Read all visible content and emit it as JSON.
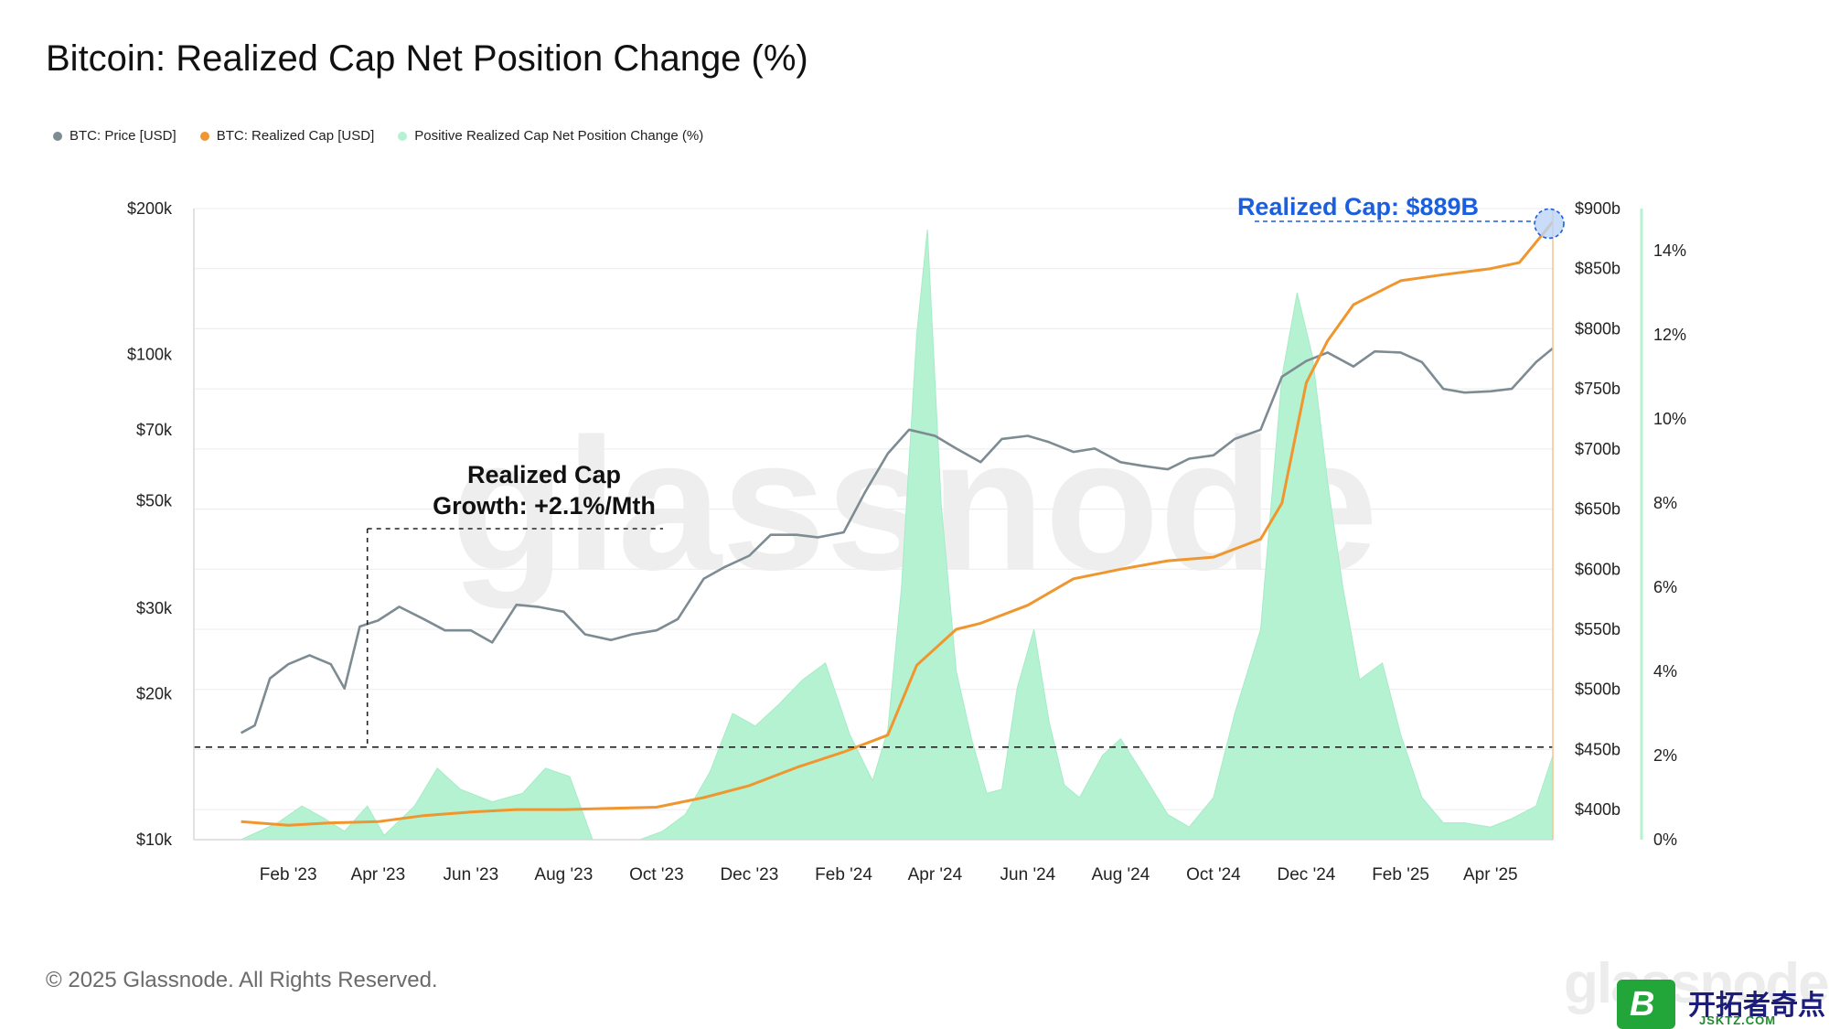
{
  "title": "Bitcoin: Realized Cap Net Position Change (%)",
  "legend": [
    {
      "label": "BTC: Price [USD]",
      "color": "#7d8b92"
    },
    {
      "label": "BTC: Realized Cap [USD]",
      "color": "#f0962e"
    },
    {
      "label": "Positive Realized Cap Net Position Change (%)",
      "color": "#b4f2d2"
    }
  ],
  "footer": "© 2025 Glassnode. All Rights Reserved.",
  "watermark": "glassnode",
  "site_badge": {
    "logo_letter": "B",
    "name": "开拓者奇点",
    "url": "JSKTZ.COM"
  },
  "chart_data": {
    "type": "line",
    "title": "Bitcoin: Realized Cap Net Position Change (%)",
    "x_tick_labels": [
      "Feb '23",
      "Apr '23",
      "Jun '23",
      "Aug '23",
      "Oct '23",
      "Dec '23",
      "Feb '24",
      "Apr '24",
      "Jun '24",
      "Aug '24",
      "Oct '24",
      "Dec '24",
      "Feb '25",
      "Apr '25"
    ],
    "left_axis": {
      "scale": "log",
      "range": [
        10000,
        200000
      ],
      "tick_values": [
        10000,
        20000,
        30000,
        50000,
        70000,
        100000,
        200000
      ],
      "tick_labels": [
        "$10k",
        "$20k",
        "$30k",
        "$50k",
        "$70k",
        "$100k",
        "$200k"
      ]
    },
    "right_axis": {
      "range": [
        375,
        900
      ],
      "tick_values": [
        400,
        450,
        500,
        550,
        600,
        650,
        700,
        750,
        800,
        850,
        900
      ],
      "tick_labels": [
        "$400b",
        "$450b",
        "$500b",
        "$550b",
        "$600b",
        "$650b",
        "$700b",
        "$750b",
        "$800b",
        "$850b",
        "$900b"
      ]
    },
    "pct_axis": {
      "range": [
        0,
        15
      ],
      "tick_values": [
        0,
        2,
        4,
        6,
        8,
        10,
        12,
        14
      ],
      "tick_labels": [
        "0%",
        "2%",
        "4%",
        "6%",
        "8%",
        "10%",
        "12%",
        "14%"
      ]
    },
    "series": [
      {
        "name": "BTC: Price [USD]",
        "axis": "left",
        "color": "#7d8b92",
        "x": [
          "2023-01-01",
          "2023-01-10",
          "2023-01-20",
          "2023-02-01",
          "2023-02-15",
          "2023-03-01",
          "2023-03-10",
          "2023-03-20",
          "2023-04-01",
          "2023-04-15",
          "2023-05-01",
          "2023-05-15",
          "2023-06-01",
          "2023-06-15",
          "2023-07-01",
          "2023-07-15",
          "2023-08-01",
          "2023-08-15",
          "2023-09-01",
          "2023-09-15",
          "2023-10-01",
          "2023-10-15",
          "2023-11-01",
          "2023-11-15",
          "2023-12-01",
          "2023-12-15",
          "2024-01-01",
          "2024-01-15",
          "2024-02-01",
          "2024-02-15",
          "2024-03-01",
          "2024-03-15",
          "2024-04-01",
          "2024-04-15",
          "2024-05-01",
          "2024-05-15",
          "2024-06-01",
          "2024-06-15",
          "2024-07-01",
          "2024-07-15",
          "2024-08-01",
          "2024-08-15",
          "2024-09-01",
          "2024-09-15",
          "2024-10-01",
          "2024-10-15",
          "2024-11-01",
          "2024-11-15",
          "2024-12-01",
          "2024-12-15",
          "2025-01-01",
          "2025-01-15",
          "2025-02-01",
          "2025-02-15",
          "2025-03-01",
          "2025-03-15",
          "2025-04-01",
          "2025-04-15",
          "2025-05-01",
          "2025-05-12"
        ],
        "values": [
          16600,
          17200,
          21500,
          23000,
          24000,
          23000,
          20500,
          27500,
          28300,
          30200,
          28500,
          27000,
          27000,
          25500,
          30500,
          30200,
          29500,
          26500,
          25800,
          26500,
          27000,
          28500,
          34500,
          36500,
          38500,
          42500,
          42500,
          42000,
          43000,
          52000,
          62500,
          70000,
          68000,
          64000,
          60000,
          67000,
          68000,
          66000,
          63000,
          64000,
          60000,
          59000,
          58000,
          61000,
          62000,
          67000,
          70000,
          90000,
          97000,
          101000,
          94500,
          101500,
          101000,
          96500,
          85000,
          83500,
          84000,
          85000,
          96500,
          103000
        ]
      },
      {
        "name": "BTC: Realized Cap [USD]",
        "axis": "right",
        "color": "#f0962e",
        "x": [
          "2023-01-01",
          "2023-02-01",
          "2023-03-01",
          "2023-04-01",
          "2023-05-01",
          "2023-06-01",
          "2023-07-01",
          "2023-08-01",
          "2023-09-01",
          "2023-10-01",
          "2023-11-01",
          "2023-12-01",
          "2024-01-01",
          "2024-02-01",
          "2024-03-01",
          "2024-03-20",
          "2024-04-15",
          "2024-05-01",
          "2024-06-01",
          "2024-07-01",
          "2024-08-01",
          "2024-09-01",
          "2024-10-01",
          "2024-11-01",
          "2024-11-15",
          "2024-12-01",
          "2024-12-15",
          "2025-01-01",
          "2025-02-01",
          "2025-03-01",
          "2025-04-01",
          "2025-04-20",
          "2025-05-12"
        ],
        "values": [
          390,
          387,
          389,
          390,
          395,
          398,
          400,
          400,
          401,
          402,
          410,
          420,
          435,
          448,
          462,
          520,
          550,
          555,
          570,
          592,
          600,
          607,
          610,
          625,
          655,
          755,
          790,
          820,
          840,
          845,
          850,
          855,
          889
        ]
      },
      {
        "name": "Positive Realized Cap Net Position Change (%)",
        "axis": "pct",
        "color": "#b4f2d2",
        "x": [
          "2023-01-01",
          "2023-01-25",
          "2023-02-10",
          "2023-02-25",
          "2023-03-10",
          "2023-03-25",
          "2023-04-05",
          "2023-04-25",
          "2023-05-10",
          "2023-05-25",
          "2023-06-15",
          "2023-07-05",
          "2023-07-20",
          "2023-08-05",
          "2023-08-20",
          "2023-09-05",
          "2023-09-20",
          "2023-10-05",
          "2023-10-20",
          "2023-11-05",
          "2023-11-20",
          "2023-12-05",
          "2023-12-20",
          "2024-01-05",
          "2024-01-20",
          "2024-02-05",
          "2024-02-20",
          "2024-03-01",
          "2024-03-10",
          "2024-03-20",
          "2024-03-27",
          "2024-04-05",
          "2024-04-15",
          "2024-04-25",
          "2024-05-05",
          "2024-05-15",
          "2024-05-25",
          "2024-06-05",
          "2024-06-15",
          "2024-06-25",
          "2024-07-05",
          "2024-07-20",
          "2024-08-01",
          "2024-08-15",
          "2024-09-01",
          "2024-09-15",
          "2024-10-01",
          "2024-10-15",
          "2024-11-01",
          "2024-11-15",
          "2024-11-25",
          "2024-12-05",
          "2024-12-15",
          "2024-12-25",
          "2025-01-05",
          "2025-01-20",
          "2025-02-01",
          "2025-02-15",
          "2025-03-01",
          "2025-03-15",
          "2025-04-01",
          "2025-04-15",
          "2025-05-01",
          "2025-05-12"
        ],
        "values": [
          0,
          0.4,
          0.8,
          0.5,
          0.2,
          0.8,
          0.1,
          0.8,
          1.7,
          1.2,
          0.9,
          1.1,
          1.7,
          1.5,
          0,
          0,
          0,
          0.2,
          0.6,
          1.6,
          3.0,
          2.7,
          3.2,
          3.8,
          4.2,
          2.5,
          1.4,
          2.6,
          6.0,
          12.0,
          14.5,
          8.0,
          4.0,
          2.4,
          1.1,
          1.2,
          3.6,
          5.0,
          2.8,
          1.3,
          1.0,
          2.0,
          2.4,
          1.6,
          0.6,
          0.3,
          1.0,
          3.0,
          5.0,
          11.0,
          13.0,
          11.5,
          8.5,
          6.0,
          3.8,
          4.2,
          2.5,
          1.0,
          0.4,
          0.4,
          0.3,
          0.5,
          0.8,
          2.0
        ]
      }
    ],
    "annotations": [
      {
        "text_lines": [
          "Realized Cap",
          "Growth: +2.1%/Mth"
        ],
        "color": "#111111"
      },
      {
        "text": "Realized Cap: $889B",
        "color": "#1a5fe0"
      }
    ],
    "grid": true,
    "legend_position": "top-left"
  }
}
